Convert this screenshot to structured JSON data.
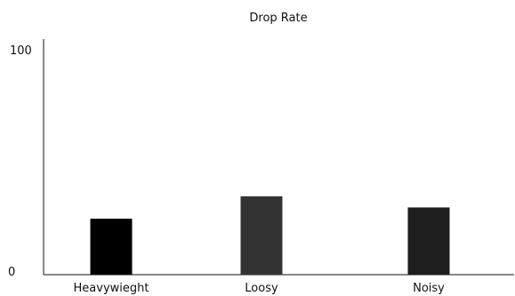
{
  "chart_data": {
    "type": "bar",
    "title": "Drop Rate",
    "xlabel": "",
    "ylabel": "",
    "categories": [
      "Heavywieght",
      "Loosy",
      "Noisy"
    ],
    "values": [
      25,
      35,
      30
    ],
    "ylim": [
      0,
      100
    ],
    "y_ticks": [
      "0",
      "100"
    ],
    "bar_colors": [
      "#000000",
      "#333333",
      "#1e1e1e"
    ],
    "grid": false,
    "legend": "none"
  }
}
